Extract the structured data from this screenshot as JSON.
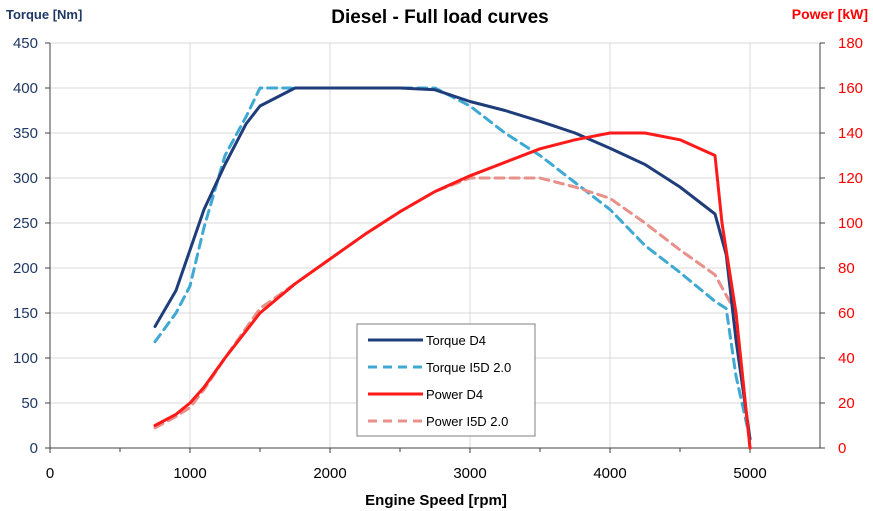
{
  "chart_data": {
    "type": "line",
    "title": "Diesel - Full load curves",
    "xlabel": "Engine Speed [rpm]",
    "ylabel_left": "Torque [Nm]",
    "ylabel_right": "Power [kW]",
    "xlim": [
      0,
      5500
    ],
    "ylim_left": [
      0,
      450
    ],
    "ylim_right": [
      0,
      180
    ],
    "xticks": [
      "0",
      "1000",
      "2000",
      "3000",
      "4000",
      "5000"
    ],
    "yticks_left": [
      "0",
      "50",
      "100",
      "150",
      "200",
      "250",
      "300",
      "350",
      "400",
      "450"
    ],
    "yticks_right": [
      "0",
      "20",
      "40",
      "60",
      "80",
      "100",
      "120",
      "140",
      "160",
      "180"
    ],
    "grid": true,
    "legend_position": "center-bottom",
    "colors": {
      "left_axis": "#1f3864",
      "right_axis": "#ff0000",
      "torque_d4": "#1f3d7a",
      "torque_i5d": "#3fa9d4",
      "power_d4": "#ff1a1a",
      "power_i5d": "#e8908a"
    },
    "series": [
      {
        "name": "Torque D4",
        "axis": "left",
        "style": "solid",
        "color": "#1f3d7a",
        "x": [
          750,
          900,
          1000,
          1100,
          1250,
          1400,
          1500,
          1750,
          2000,
          2500,
          2750,
          3000,
          3250,
          3500,
          3750,
          4000,
          4250,
          4500,
          4750,
          4830,
          4900,
          5000
        ],
        "y": [
          135,
          175,
          220,
          265,
          315,
          360,
          380,
          400,
          400,
          400,
          398,
          385,
          375,
          363,
          350,
          333,
          315,
          290,
          260,
          215,
          120,
          10
        ]
      },
      {
        "name": "Torque I5D 2.0",
        "axis": "left",
        "style": "dashed",
        "color": "#3fa9d4",
        "x": [
          750,
          900,
          1000,
          1100,
          1250,
          1400,
          1500,
          1750,
          2000,
          2500,
          2750,
          3000,
          3250,
          3500,
          3750,
          4000,
          4250,
          4500,
          4750,
          4830,
          4900,
          5000
        ],
        "y": [
          118,
          150,
          180,
          245,
          325,
          368,
          400,
          400,
          400,
          400,
          400,
          380,
          350,
          325,
          295,
          265,
          225,
          195,
          163,
          155,
          80,
          10
        ]
      },
      {
        "name": "Power D4",
        "axis": "right",
        "style": "solid",
        "color": "#ff1a1a",
        "x": [
          750,
          900,
          1000,
          1100,
          1250,
          1500,
          1750,
          2000,
          2250,
          2500,
          2750,
          3000,
          3250,
          3500,
          3750,
          4000,
          4250,
          4500,
          4750,
          4800,
          4900,
          5000
        ],
        "y": [
          10,
          15,
          20,
          27,
          40,
          60,
          73,
          84,
          95,
          105,
          114,
          121,
          127,
          133,
          137,
          140,
          140,
          137,
          130,
          100,
          60,
          0
        ]
      },
      {
        "name": "Power I5D 2.0",
        "axis": "right",
        "style": "dashed",
        "color": "#e8908a",
        "x": [
          750,
          900,
          1000,
          1100,
          1250,
          1500,
          1750,
          2000,
          2250,
          2500,
          2750,
          3000,
          3250,
          3500,
          3750,
          4000,
          4250,
          4500,
          4750,
          4900,
          5000
        ],
        "y": [
          9,
          14,
          18,
          26,
          40,
          62,
          73,
          84,
          95,
          105,
          114,
          120,
          120,
          120,
          116,
          111,
          100,
          88,
          77,
          60,
          0
        ]
      }
    ]
  }
}
